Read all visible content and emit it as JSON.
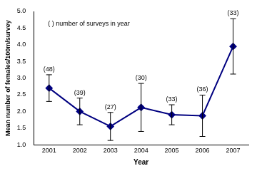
{
  "chart_data": {
    "type": "line",
    "x_label": "Year",
    "y_label": "Mean number of females/100m/survey",
    "annotation": "( ) number of surveys in year",
    "categories": [
      "2001",
      "2002",
      "2003",
      "2004",
      "2005",
      "2006",
      "2007"
    ],
    "values": [
      2.7,
      2.0,
      1.55,
      2.12,
      1.9,
      1.87,
      3.95
    ],
    "error": [
      0.4,
      0.4,
      0.42,
      0.72,
      0.3,
      0.62,
      0.83
    ],
    "point_labels": [
      "(48)",
      "(39)",
      "(27)",
      "(30)",
      "(33)",
      "(36)",
      "(33)"
    ],
    "color": "#000080",
    "marker": "diamond",
    "ylim": [
      1.0,
      5.0
    ],
    "yticks": [
      {
        "value": 1.0,
        "label": "1.0"
      },
      {
        "value": 1.5,
        "label": "1.5"
      },
      {
        "value": 2.0,
        "label": "2.0"
      },
      {
        "value": 2.5,
        "label": "2.5"
      },
      {
        "value": 3.0,
        "label": "3.0"
      },
      {
        "value": 3.5,
        "label": "3.5"
      },
      {
        "value": 4.0,
        "label": "4.0"
      },
      {
        "value": 4.5,
        "label": "4.5"
      },
      {
        "value": 5.0,
        "label": "5.0"
      }
    ],
    "grid": false
  }
}
